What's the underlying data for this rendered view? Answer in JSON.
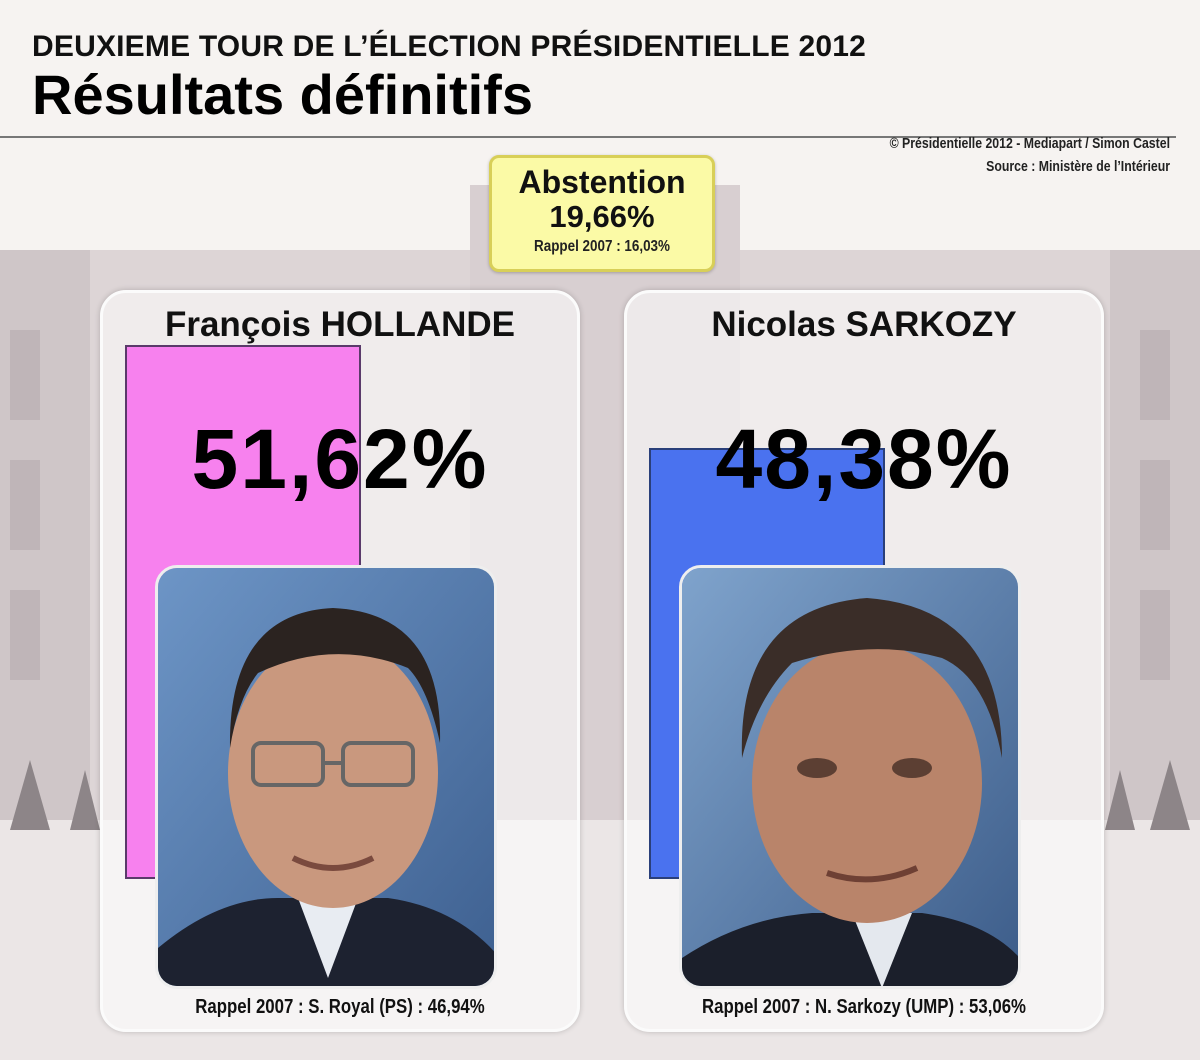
{
  "header": {
    "supertitle": "DEUXIEME TOUR DE L’ÉLECTION PRÉSIDENTIELLE 2012",
    "title": "Résultats définitifs"
  },
  "credit": {
    "line1": "© Présidentielle 2012 - Mediapart / Simon Castel",
    "line2": "Source : Ministère de l’Intérieur"
  },
  "abstention": {
    "label": "Abstention",
    "value": "19,66%",
    "recall": "Rappel 2007 : 16,03%"
  },
  "candidates": [
    {
      "name": "François HOLLANDE",
      "percent_text": "51,62%",
      "recall": "Rappel 2007 : S. Royal (PS) : 46,94%",
      "color": "#f781ee"
    },
    {
      "name": "Nicolas SARKOZY",
      "percent_text": "48,38%",
      "recall": "Rappel 2007 : N. Sarkozy (UMP) : 53,06%",
      "color": "#4a72ef"
    }
  ],
  "chart_data": {
    "type": "bar",
    "categories": [
      "François HOLLANDE",
      "Nicolas SARKOZY"
    ],
    "values": [
      51.62,
      48.38
    ],
    "title": "Résultats définitifs",
    "xlabel": "",
    "ylabel": ""
  }
}
